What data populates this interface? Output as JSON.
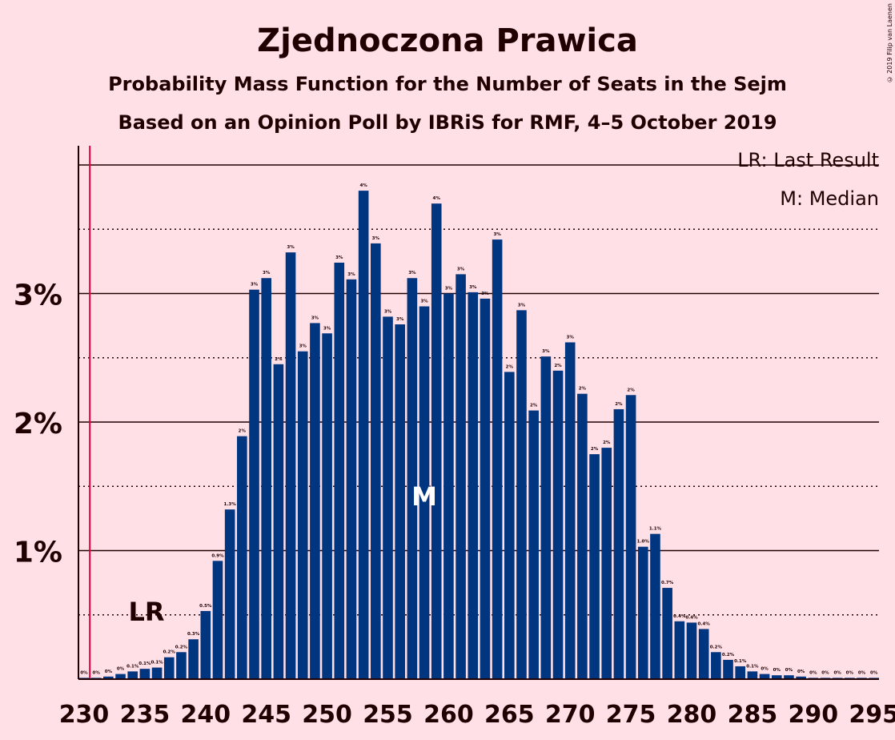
{
  "title": "Zjednoczona Prawica",
  "subtitle1": "Probability Mass Function for the Number of Seats in the Sejm",
  "subtitle2": "Based on an Opinion Poll by IBRiS for RMF, 4–5 October 2019",
  "legend_lr": "LR: Last Result",
  "legend_m": "M: Median",
  "credit": "© 2019 Filip van Laenen",
  "colors": {
    "background": "#FFE0E6",
    "bar": "#003580",
    "last_result_line": "#E0003C",
    "text": "#200000"
  },
  "chart_data": {
    "type": "bar",
    "x": [
      230,
      231,
      232,
      233,
      234,
      235,
      236,
      237,
      238,
      239,
      240,
      241,
      242,
      243,
      244,
      245,
      246,
      247,
      248,
      249,
      250,
      251,
      252,
      253,
      254,
      255,
      256,
      257,
      258,
      259,
      260,
      261,
      262,
      263,
      264,
      265,
      266,
      267,
      268,
      269,
      270,
      271,
      272,
      273,
      274,
      275,
      276,
      277,
      278,
      279,
      280,
      281,
      282,
      283,
      284,
      285,
      286,
      287,
      288,
      289,
      290,
      291,
      292,
      293,
      294,
      295
    ],
    "values": [
      0.01,
      0.01,
      0.02,
      0.04,
      0.06,
      0.08,
      0.09,
      0.17,
      0.21,
      0.31,
      0.53,
      0.92,
      1.32,
      1.89,
      3.03,
      3.12,
      2.45,
      3.32,
      2.55,
      2.77,
      2.69,
      3.24,
      3.11,
      3.8,
      3.39,
      2.82,
      2.76,
      3.12,
      2.9,
      3.7,
      3.0,
      3.15,
      3.01,
      2.96,
      3.42,
      2.39,
      2.87,
      2.09,
      2.51,
      2.4,
      2.62,
      2.22,
      1.75,
      1.8,
      2.1,
      2.21,
      1.03,
      1.13,
      0.71,
      0.45,
      0.44,
      0.39,
      0.21,
      0.15,
      0.1,
      0.06,
      0.04,
      0.03,
      0.03,
      0.02,
      0.01,
      0.01,
      0.01,
      0.01,
      0.01,
      0.01
    ],
    "bar_labels": [
      "0%",
      "0%",
      "0%",
      "0%",
      "0.1%",
      "0.1%",
      "0.1%",
      "0.2%",
      "0.2%",
      "0.3%",
      "0.5%",
      "0.9%",
      "1.3%",
      "2%",
      "3%",
      "3%",
      "2%",
      "3%",
      "3%",
      "3%",
      "3%",
      "3%",
      "3%",
      "4%",
      "3%",
      "3%",
      "3%",
      "3%",
      "3%",
      "4%",
      "3%",
      "3%",
      "3%",
      "3%",
      "3%",
      "2%",
      "3%",
      "2%",
      "3%",
      "2%",
      "3%",
      "2%",
      "2%",
      "2%",
      "2%",
      "2%",
      "1.0%",
      "1.1%",
      "0.7%",
      "0.4%",
      "0.4%",
      "0.4%",
      "0.2%",
      "0.2%",
      "0.1%",
      "0.1%",
      "0%",
      "0%",
      "0%",
      "0%",
      "0%",
      "0%",
      "0%",
      "0%",
      "0%",
      "0%"
    ],
    "x_ticks": [
      "230",
      "235",
      "240",
      "245",
      "250",
      "255",
      "260",
      "265",
      "270",
      "275",
      "280",
      "285",
      "290",
      "295"
    ],
    "y_ticks": [
      "1%",
      "2%",
      "3%"
    ],
    "ylim": [
      0,
      4.1
    ],
    "last_result": 231,
    "last_result_label": "LR",
    "median": 258,
    "median_label": "M",
    "grid": true
  }
}
